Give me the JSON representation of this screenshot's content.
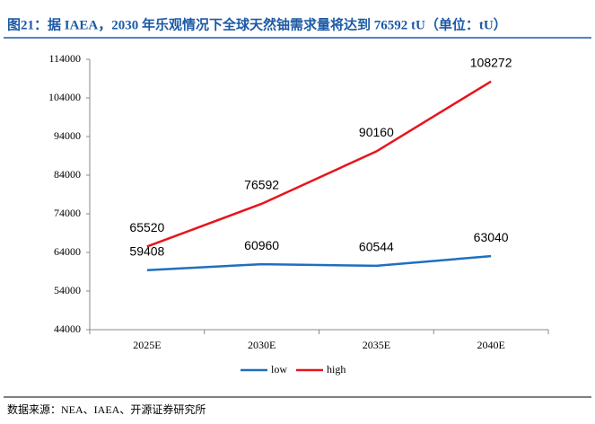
{
  "chart_data": {
    "type": "line",
    "title": "图21：据 IAEA，2030 年乐观情况下全球天然铀需求量将达到 76592 tU（单位：tU）",
    "source": "数据来源：NEA、IAEA、开源证券研究所",
    "categories": [
      "2025E",
      "2030E",
      "2035E",
      "2040E"
    ],
    "series": [
      {
        "name": "low",
        "color": "#1f6fbf",
        "values": [
          59408,
          60960,
          60544,
          63040
        ]
      },
      {
        "name": "high",
        "color": "#e8141c",
        "values": [
          65520,
          76592,
          90160,
          108272
        ]
      }
    ],
    "ylim": [
      44000,
      114000
    ],
    "yticks": [
      44000,
      54000,
      64000,
      74000,
      84000,
      94000,
      104000,
      114000
    ],
    "legend": "bottom"
  }
}
